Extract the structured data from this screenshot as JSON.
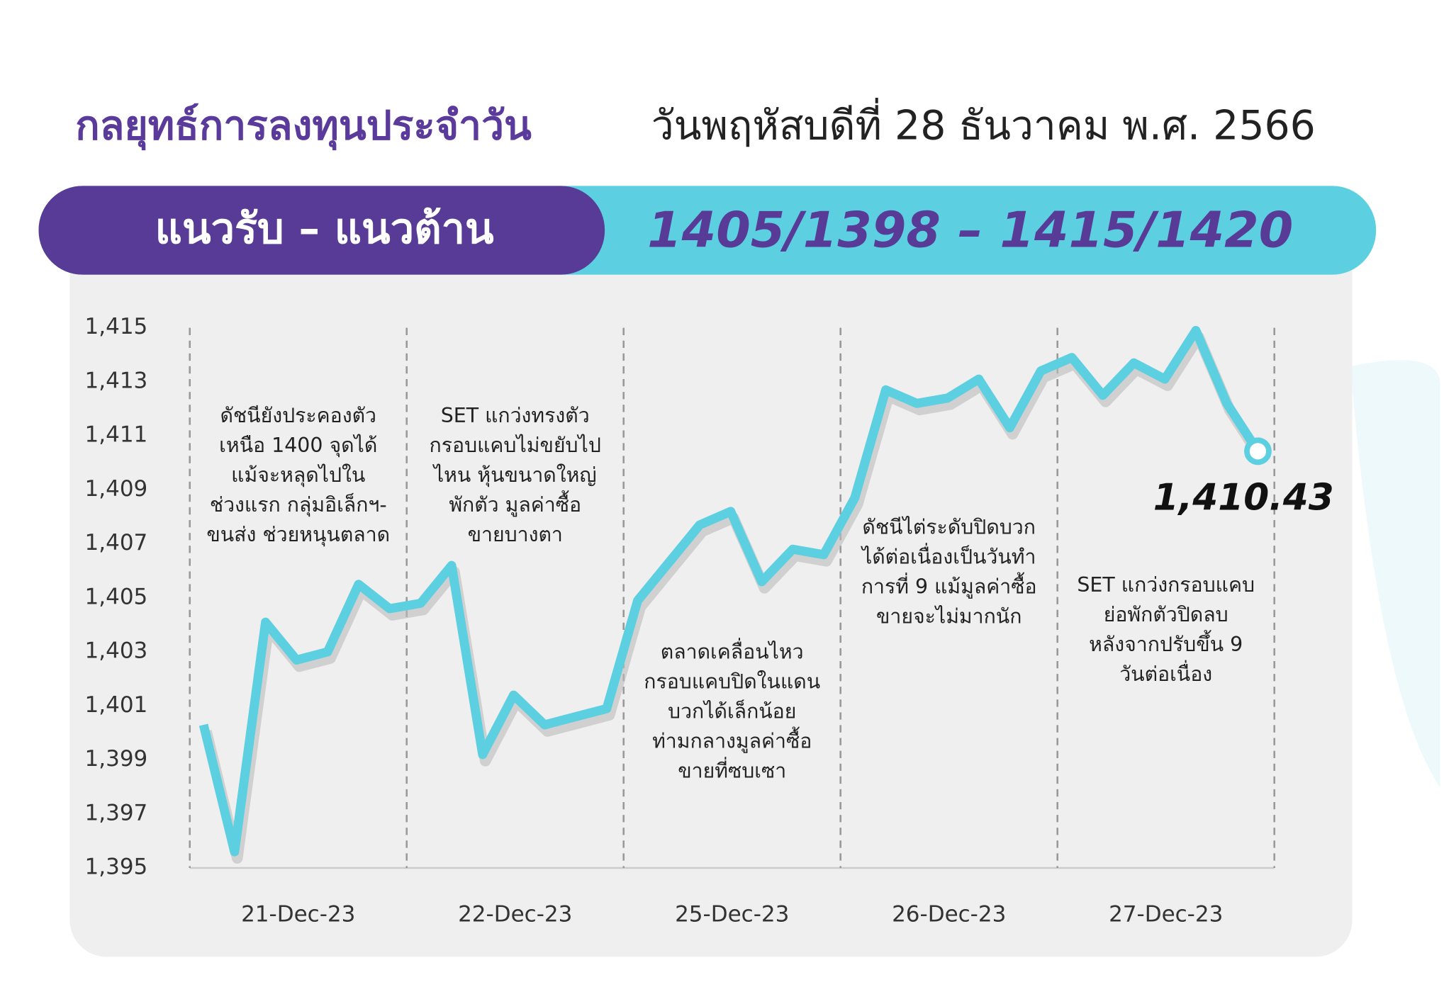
{
  "header": {
    "title": "กลยุทธ์การลงทุนประจำวัน",
    "date": "วันพฤหัสบดีที่ 28 ธันวาคม พ.ศ. 2566",
    "banner_label": "แนวรับ – แนวต้าน",
    "banner_value": "1405/1398 –  1415/1420"
  },
  "chart_data": {
    "type": "line",
    "days": [
      "21-Dec-23",
      "22-Dec-23",
      "25-Dec-23",
      "26-Dec-23",
      "27-Dec-23"
    ],
    "values": [
      1400.3,
      1395.6,
      1404.1,
      1402.7,
      1403.0,
      1405.5,
      1404.6,
      1404.8,
      1406.2,
      1399.2,
      1401.4,
      1400.3,
      1400.6,
      1400.9,
      1404.9,
      1406.3,
      1407.7,
      1408.2,
      1405.6,
      1406.8,
      1406.6,
      1408.7,
      1412.7,
      1412.2,
      1412.4,
      1413.1,
      1411.3,
      1413.4,
      1413.9,
      1412.5,
      1413.7,
      1413.1,
      1414.9,
      1412.2,
      1410.43
    ],
    "last_label": "1,410.43",
    "color": "#5ccfe0",
    "ylim": [
      1395,
      1415
    ],
    "yticks": [
      {
        "value": 1395,
        "label": "1,395"
      },
      {
        "value": 1397,
        "label": "1,397"
      },
      {
        "value": 1399,
        "label": "1,399"
      },
      {
        "value": 1401,
        "label": "1,401"
      },
      {
        "value": 1403,
        "label": "1,403"
      },
      {
        "value": 1405,
        "label": "1,405"
      },
      {
        "value": 1407,
        "label": "1,407"
      },
      {
        "value": 1409,
        "label": "1,409"
      },
      {
        "value": 1411,
        "label": "1,411"
      },
      {
        "value": 1413,
        "label": "1,413"
      },
      {
        "value": 1415,
        "label": "1,415"
      }
    ],
    "annotations": [
      [
        "ดัชนียังประคองตัว",
        "เหนือ 1400 จุดได้",
        "แม้จะหลุดไปใน",
        "ช่วงแรก กลุ่มอิเล็กฯ-",
        "ขนส่ง ช่วยหนุนตลาด"
      ],
      [
        "SET แกว่งทรงตัว",
        "กรอบแคบไม่ขยับไป",
        "ไหน หุ้นขนาดใหญ่",
        "พักตัว มูลค่าซื้อ",
        "ขายบางตา"
      ],
      [
        "ตลาดเคลื่อนไหว",
        "กรอบแคบปิดในแดน",
        "บวกได้เล็กน้อย",
        "ท่ามกลางมูลค่าซื้อ",
        "ขายที่ซบเซา"
      ],
      [
        "ดัชนีไต่ระดับปิดบวก",
        "ได้ต่อเนื่องเป็นวันทำ",
        "การที่ 9 แม้มูลค่าซื้อ",
        "ขายจะไม่มากนัก"
      ],
      [
        "SET แกว่งกรอบแคบ",
        "ย่อพักตัวปิดลบ",
        "หลังจากปรับขึ้น 9",
        "วันต่อเนื่อง"
      ]
    ]
  }
}
